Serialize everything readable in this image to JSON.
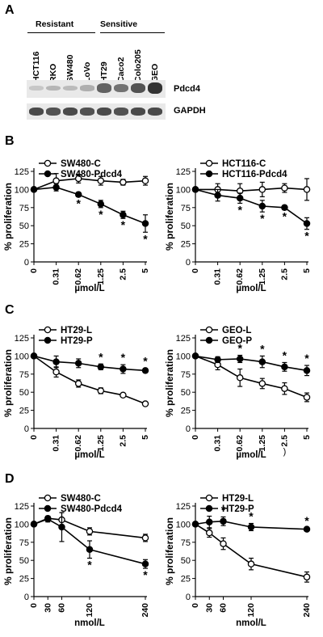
{
  "panels": {
    "A": "A",
    "B": "B",
    "C": "C",
    "D": "D"
  },
  "panel_A": {
    "group_resistant": "Resistant",
    "group_sensitive": "Sensitive",
    "lanes": [
      "HCT116",
      "RKO",
      "SW480",
      "LoVo",
      "HT29",
      "Caco2",
      "Colo205",
      "GEO"
    ],
    "blot_pdcd4_label": "Pdcd4",
    "blot_gapdh_label": "GAPDH",
    "pdcd4_intensity": [
      0.05,
      0.15,
      0.12,
      0.2,
      0.7,
      0.6,
      0.8,
      1.0
    ],
    "gapdh_intensity": [
      0.85,
      0.8,
      0.85,
      0.8,
      0.85,
      0.8,
      0.85,
      0.85
    ]
  },
  "chart_data": [
    {
      "id": "B1",
      "type": "line",
      "categories": [
        "0",
        "0.31",
        "0.62",
        "1.25",
        "2.5",
        "5"
      ],
      "xlabel": "µmol/L",
      "ylabel": "% proliferation",
      "ylim": [
        0,
        125
      ],
      "yticks": [
        "0",
        "25",
        "50",
        "75",
        "100",
        "125"
      ],
      "series": [
        {
          "name": "SW480-C",
          "marker": "open",
          "values": [
            100,
            112,
            115,
            112,
            110,
            112
          ],
          "err": [
            0,
            10,
            6,
            6,
            4,
            6
          ]
        },
        {
          "name": "SW480-Pdcd4",
          "marker": "filled",
          "values": [
            100,
            103,
            93,
            80,
            65,
            53
          ],
          "err": [
            0,
            5,
            3,
            5,
            5,
            12
          ]
        }
      ],
      "significance": [
        2,
        3,
        4,
        5
      ],
      "sig_mark": "*"
    },
    {
      "id": "B2",
      "type": "line",
      "categories": [
        "0",
        "0.31",
        "0.62",
        "1.25",
        "2.5",
        "5"
      ],
      "xlabel": "µmol/L",
      "ylabel": "% proliferation",
      "ylim": [
        0,
        125
      ],
      "yticks": [
        "0",
        "25",
        "50",
        "75",
        "100",
        "125"
      ],
      "series": [
        {
          "name": "HCT116-C",
          "marker": "open",
          "values": [
            100,
            100,
            98,
            100,
            102,
            100
          ],
          "err": [
            0,
            8,
            10,
            10,
            6,
            15
          ]
        },
        {
          "name": "HCT116-Pdcd4",
          "marker": "filled",
          "values": [
            100,
            92,
            88,
            77,
            75,
            53
          ],
          "err": [
            0,
            8,
            7,
            8,
            3,
            8
          ]
        }
      ],
      "significance": [
        2,
        3,
        4,
        5
      ],
      "sig_mark": "*"
    },
    {
      "id": "C1",
      "type": "line",
      "categories": [
        "0",
        "0.31",
        "0.62",
        "1.25",
        "2.5",
        "5"
      ],
      "xlabel": "µmol/L",
      "ylabel": "% proliferation",
      "ylim": [
        0,
        125
      ],
      "yticks": [
        "0",
        "25",
        "50",
        "75",
        "100",
        "125"
      ],
      "series": [
        {
          "name": "HT29-L",
          "marker": "open",
          "values": [
            100,
            78,
            62,
            52,
            46,
            34
          ],
          "err": [
            0,
            7,
            5,
            4,
            2,
            2
          ]
        },
        {
          "name": "HT29-P",
          "marker": "filled",
          "values": [
            100,
            92,
            90,
            85,
            82,
            80
          ],
          "err": [
            0,
            8,
            6,
            4,
            6,
            3
          ]
        }
      ],
      "significance": [
        3,
        4,
        5
      ],
      "sig_mark": "*"
    },
    {
      "id": "C2",
      "type": "line",
      "categories": [
        "0",
        "0.31",
        "0.62",
        "1.25",
        "2.5",
        "5"
      ],
      "xlabel": "µmol/L",
      "ylabel": "% proliferation",
      "xlabel_extra": ")",
      "ylim": [
        0,
        125
      ],
      "yticks": [
        "0",
        "25",
        "50",
        "75",
        "100",
        "125"
      ],
      "series": [
        {
          "name": "GEO-L",
          "marker": "open",
          "values": [
            100,
            88,
            70,
            62,
            55,
            43
          ],
          "err": [
            0,
            7,
            12,
            7,
            8,
            6
          ]
        },
        {
          "name": "GEO-P",
          "marker": "filled",
          "values": [
            100,
            95,
            96,
            92,
            85,
            80
          ],
          "err": [
            0,
            4,
            5,
            8,
            6,
            7
          ]
        }
      ],
      "significance": [
        2,
        3,
        4,
        5
      ],
      "sig_mark": "*"
    },
    {
      "id": "D1",
      "type": "line",
      "x": [
        0,
        30,
        60,
        120,
        240
      ],
      "categories": [
        "0",
        "30",
        "60",
        "120",
        "240"
      ],
      "xlabel": "nmol/L",
      "ylabel": "% proliferation",
      "ylim": [
        0,
        125
      ],
      "yticks": [
        "0",
        "25",
        "50",
        "75",
        "100",
        "125"
      ],
      "series": [
        {
          "name": "SW480-C",
          "marker": "open",
          "values": [
            100,
            108,
            106,
            90,
            81
          ],
          "err": [
            0,
            3,
            10,
            5,
            5
          ]
        },
        {
          "name": "SW480-Pdcd4",
          "marker": "filled",
          "values": [
            100,
            107,
            96,
            65,
            45
          ],
          "err": [
            0,
            4,
            20,
            12,
            6
          ]
        }
      ],
      "significance": [
        3,
        4
      ],
      "sig_mark": "*"
    },
    {
      "id": "D2",
      "type": "line",
      "x": [
        0,
        30,
        60,
        120,
        240
      ],
      "categories": [
        "0",
        "30",
        "60",
        "120",
        "240"
      ],
      "xlabel": "nmol/L",
      "ylabel": "% proliferation",
      "ylim": [
        0,
        125
      ],
      "yticks": [
        "0",
        "25",
        "50",
        "75",
        "100",
        "125"
      ],
      "series": [
        {
          "name": "HT29-L",
          "marker": "open",
          "values": [
            100,
            88,
            73,
            45,
            27
          ],
          "err": [
            0,
            6,
            8,
            8,
            7
          ]
        },
        {
          "name": "HT29-P",
          "marker": "filled",
          "values": [
            100,
            103,
            104,
            96,
            93
          ],
          "err": [
            0,
            8,
            6,
            5,
            2
          ]
        }
      ],
      "significance": [
        2,
        3,
        4
      ],
      "sig_mark": "*"
    }
  ]
}
